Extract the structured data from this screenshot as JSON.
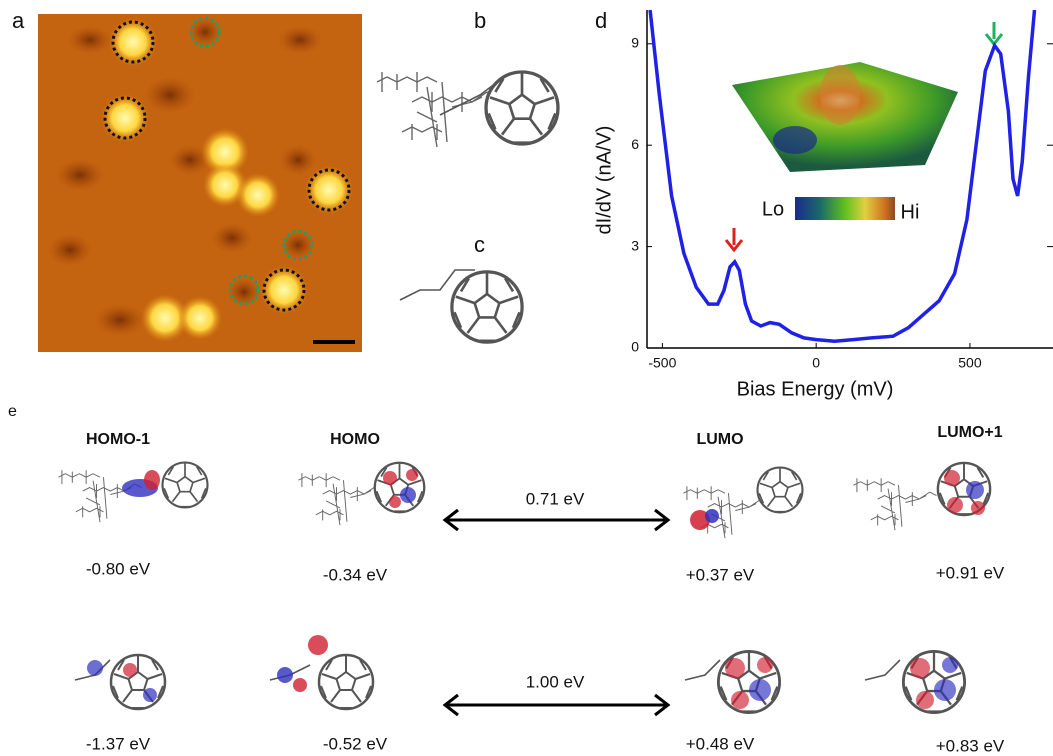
{
  "panels": [
    "a",
    "b",
    "c",
    "d",
    "e"
  ],
  "chart_data": {
    "type": "line",
    "x_label": "Bias Energy (mV)",
    "y_label": "dI/dV (nA/V)",
    "x": [
      -540,
      -510,
      -470,
      -430,
      -390,
      -350,
      -320,
      -300,
      -280,
      -265,
      -250,
      -230,
      -210,
      -180,
      -150,
      -120,
      -80,
      -40,
      0,
      60,
      120,
      180,
      250,
      300,
      350,
      400,
      450,
      490,
      520,
      550,
      580,
      600,
      625,
      640,
      655,
      670,
      690,
      710
    ],
    "series": [
      {
        "color": "#1f22e6",
        "values": [
          10,
          7.5,
          4.5,
          2.8,
          1.8,
          1.3,
          1.3,
          1.7,
          2.4,
          2.55,
          2.3,
          1.3,
          0.8,
          0.65,
          0.75,
          0.7,
          0.45,
          0.3,
          0.25,
          0.2,
          0.25,
          0.3,
          0.35,
          0.6,
          1.0,
          1.4,
          2.2,
          3.8,
          6.0,
          8.2,
          8.95,
          8.7,
          7.0,
          5.0,
          4.5,
          5.5,
          8.0,
          10
        ]
      }
    ],
    "xlim": [
      -550,
      770
    ],
    "ylim": [
      0,
      10
    ],
    "xticks": [
      -500,
      0,
      500
    ],
    "yticks": [
      0,
      3,
      6,
      9
    ],
    "inset": {
      "low_label": "Lo",
      "high_label": "Hi"
    }
  },
  "orbitals": {
    "headers": [
      "HOMO-1",
      "HOMO",
      "LUMO",
      "LUMO+1"
    ],
    "rows": [
      {
        "energies": [
          "-0.80 eV",
          "-0.34 eV",
          "+0.37 eV",
          "+0.91 eV"
        ],
        "gap": "0.71 eV"
      },
      {
        "energies": [
          "-1.37 eV",
          "-0.52 eV",
          "+0.48 eV",
          "+0.83 eV"
        ],
        "gap": "1.00 eV"
      }
    ]
  }
}
